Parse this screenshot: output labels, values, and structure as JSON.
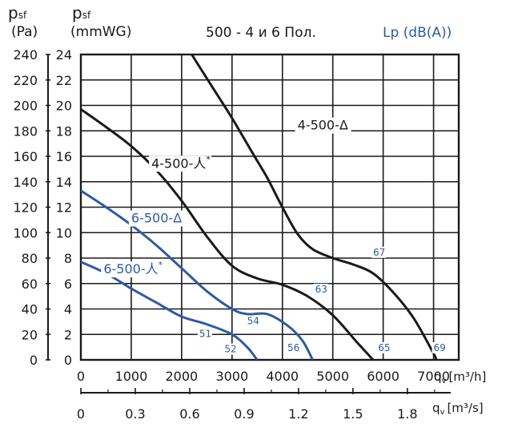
{
  "header": {
    "pa_symbol": "p",
    "pa_sub": "sf",
    "pa_unit": "(Pa)",
    "mm_symbol": "p",
    "mm_sub": "sf",
    "mm_unit": "(mmWG)",
    "title": "500 - 4 и 6 Пол.",
    "lp_label": "Lp (dB(A))"
  },
  "colors": {
    "black": "#1a1a1a",
    "blue": "#2f5aa3",
    "grid": "#1a1a1a"
  },
  "chart_data": {
    "type": "line",
    "title": "500 - 4 и 6 Пол.",
    "axes": {
      "y_left_pa": {
        "label": "psf (Pa)",
        "min": 0,
        "max": 240,
        "ticks": [
          0,
          20,
          40,
          60,
          80,
          100,
          120,
          140,
          160,
          180,
          200,
          220,
          240
        ]
      },
      "y_left_mmwg": {
        "label": "psf (mmWG)",
        "min": 0,
        "max": 24,
        "ticks": [
          0,
          2,
          4,
          6,
          8,
          10,
          12,
          14,
          16,
          18,
          20,
          22,
          24
        ]
      },
      "x_m3h": {
        "label": "qv [m³/h]",
        "min": 0,
        "max": 7500,
        "ticks": [
          0,
          1000,
          2000,
          3000,
          4000,
          5000,
          6000,
          7000
        ]
      },
      "x_m3s": {
        "label": "qv [m³/s]",
        "min": 0,
        "max": 2.083,
        "ticks": [
          "0",
          "0.3",
          "0.6",
          "0.9",
          "1.2",
          "1.5",
          "1.8"
        ],
        "tick_values": [
          0,
          0.3,
          0.6,
          0.9,
          1.2,
          1.5,
          1.8
        ]
      }
    },
    "x_label_m3h_prefix": "q",
    "x_label_m3h_sub": "v",
    "x_label_m3h_unit": "[m³/h]",
    "x_label_m3s_prefix": "q",
    "x_label_m3s_sub": "v",
    "x_label_m3s_unit": "[m³/s]",
    "grid": true,
    "series": [
      {
        "name": "4-500-Δ",
        "color": "black",
        "x": [
          2200,
          2600,
          3000,
          3400,
          3700,
          4000,
          4300,
          4600,
          5000,
          5400,
          5800,
          6200,
          6600,
          7000,
          7050
        ],
        "y": [
          240,
          215,
          190,
          163,
          143,
          120,
          99,
          87,
          80,
          75,
          68,
          53,
          33,
          5,
          0
        ]
      },
      {
        "name": "4-500-人*",
        "color": "black",
        "x": [
          0,
          500,
          1000,
          1500,
          2000,
          2500,
          3000,
          3500,
          4000,
          4500,
          5000,
          5500,
          5800
        ],
        "y": [
          197,
          183,
          168,
          149,
          125,
          97,
          74,
          64,
          59,
          50,
          35,
          13,
          0
        ]
      },
      {
        "name": "6-500-Δ",
        "color": "blue",
        "x": [
          0,
          500,
          1000,
          1500,
          2000,
          2500,
          3000,
          3300,
          3700,
          4100,
          4400,
          4600
        ],
        "y": [
          133,
          120,
          106,
          90,
          72,
          54,
          40,
          36,
          36,
          27,
          15,
          0
        ]
      },
      {
        "name": "6-500-人*",
        "color": "blue",
        "x": [
          0,
          500,
          1000,
          1500,
          2000,
          2500,
          3000,
          3300,
          3500
        ],
        "y": [
          77,
          68,
          56,
          45,
          34,
          28,
          20,
          10,
          0
        ]
      }
    ],
    "curve_labels": [
      {
        "text": "4-500-Δ",
        "series": "4-500-Δ",
        "color": "black",
        "x": 4300,
        "y": 181
      },
      {
        "text": "4-500-人",
        "star": "*",
        "series": "4-500-人*",
        "color": "black",
        "x": 1400,
        "y": 151
      },
      {
        "text": "6-500-Δ",
        "series": "6-500-Δ",
        "color": "blue",
        "x": 1000,
        "y": 108
      },
      {
        "text": "6-500-人",
        "star": "*",
        "series": "6-500-人*",
        "color": "blue",
        "x": 450,
        "y": 68
      }
    ],
    "lp_annotations": [
      {
        "text": "67",
        "x": 5800,
        "y": 82
      },
      {
        "text": "63",
        "x": 4650,
        "y": 53
      },
      {
        "text": "54",
        "x": 3300,
        "y": 28
      },
      {
        "text": "51",
        "x": 2350,
        "y": 18
      },
      {
        "text": "52",
        "x": 2850,
        "y": 6
      },
      {
        "text": "56",
        "x": 4100,
        "y": 7
      },
      {
        "text": "65",
        "x": 5900,
        "y": 7
      },
      {
        "text": "69",
        "x": 7000,
        "y": 7
      }
    ]
  }
}
